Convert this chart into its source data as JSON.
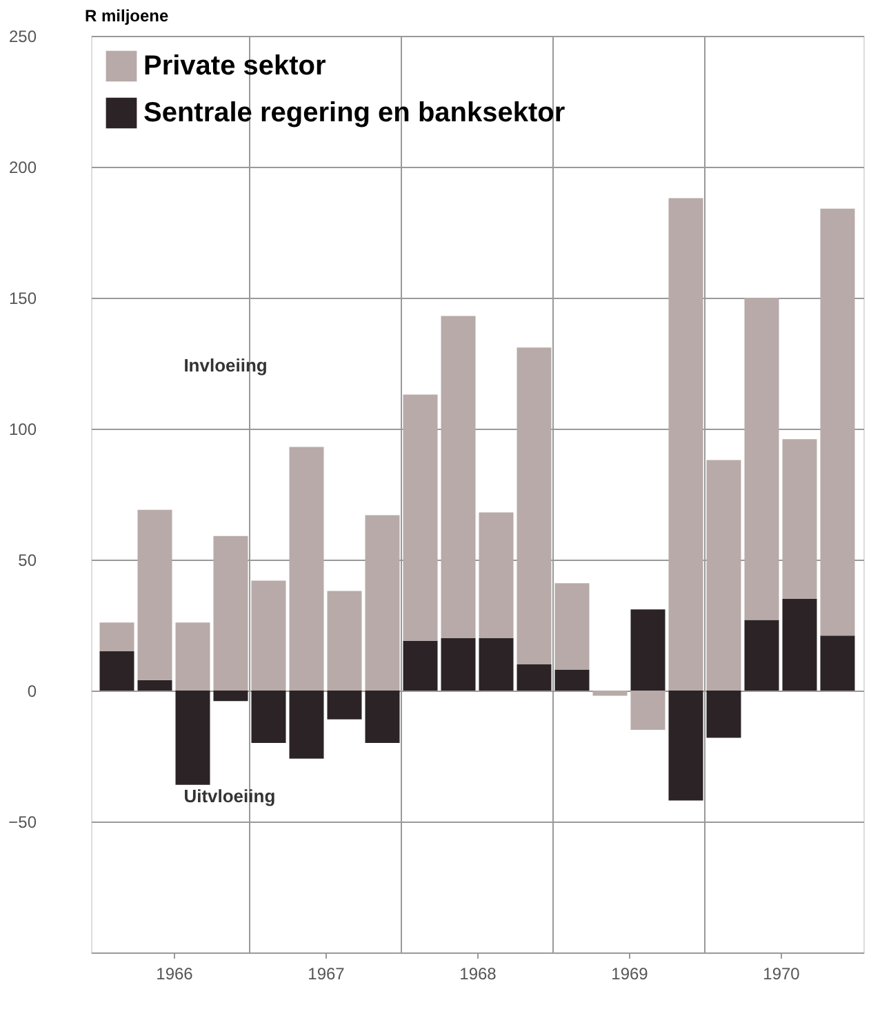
{
  "chart_data": {
    "type": "bar",
    "stacked": true,
    "ylabel": "R miljoene",
    "x": [
      1965.625,
      1965.875,
      1966.125,
      1966.375,
      1966.625,
      1966.875,
      1967.125,
      1967.375,
      1967.625,
      1967.875,
      1968.125,
      1968.375,
      1968.625,
      1968.875,
      1969.125,
      1969.375,
      1969.625,
      1969.875,
      1970.125,
      1970.375
    ],
    "series": [
      {
        "name": "Sentrale regering en banksektor",
        "color": "#2b2325",
        "values": [
          15,
          4,
          -36,
          -4,
          -20,
          -26,
          -11,
          -20,
          19,
          20,
          20,
          10,
          8,
          0,
          31,
          -42,
          -18,
          27,
          35,
          21
        ]
      },
      {
        "name": "Private sektor",
        "color": "#b7aaa8",
        "values": [
          11,
          65,
          26,
          59,
          42,
          93,
          38,
          67,
          94,
          123,
          48,
          121,
          33,
          -2,
          -15,
          188,
          88,
          123,
          61,
          163
        ]
      }
    ],
    "xlim": [
      1965.5,
      1970.5
    ],
    "xticks": [
      1966,
      1967,
      1968,
      1969,
      1970
    ],
    "ylim": [
      -100,
      250
    ],
    "yticks": [
      -50,
      0,
      50,
      100,
      150,
      200,
      250
    ],
    "grid": "y",
    "legend": "top left",
    "ref_lines": [
      {
        "axis": "x",
        "value": 1966.5,
        "color": "#999999"
      },
      {
        "axis": "x",
        "value": 1967.5,
        "color": "#999999"
      },
      {
        "axis": "x",
        "value": 1968.5,
        "color": "#999999"
      },
      {
        "axis": "x",
        "value": 1969.5,
        "color": "#999999"
      }
    ],
    "annotations": [
      "Invloeiing",
      "Uitvloeiing"
    ]
  }
}
